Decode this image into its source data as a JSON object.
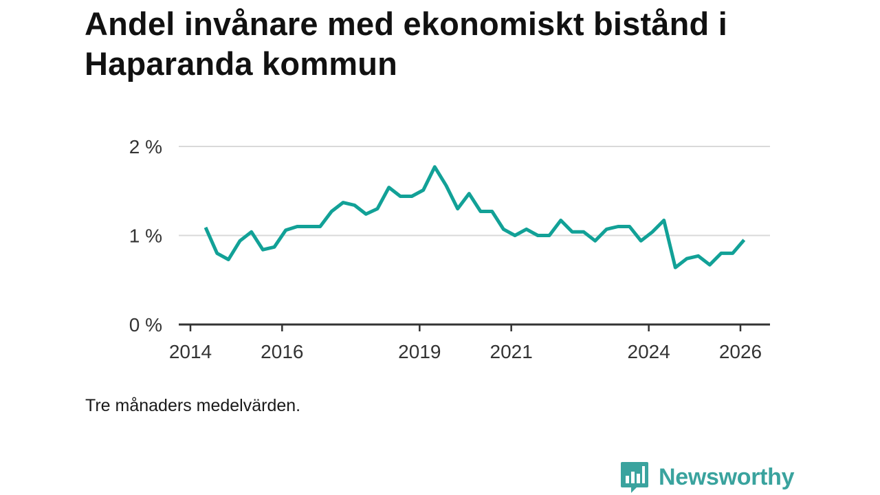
{
  "title": "Andel invånare med ekonomiskt bistånd i Haparanda kommun",
  "caption": "Tre månaders medelvärden.",
  "brand": {
    "name": "Newsworthy",
    "color": "#3aa39e"
  },
  "chart_data": {
    "type": "line",
    "title": "Andel invånare med ekonomiskt bistånd i Haparanda kommun",
    "xlabel": "",
    "ylabel": "",
    "ylim": [
      0,
      2
    ],
    "xlim": [
      2014.0,
      2026.7
    ],
    "y_ticks": [
      {
        "value": 0,
        "label": "0 %"
      },
      {
        "value": 1,
        "label": "1 %"
      },
      {
        "value": 2,
        "label": "2 %"
      }
    ],
    "x_ticks": [
      {
        "value": 2014,
        "label": "2014"
      },
      {
        "value": 2016,
        "label": "2016"
      },
      {
        "value": 2019,
        "label": "2019"
      },
      {
        "value": 2021,
        "label": "2021"
      },
      {
        "value": 2024,
        "label": "2024"
      },
      {
        "value": 2026,
        "label": "2026"
      }
    ],
    "grid": true,
    "series": [
      {
        "name": "Andel invånare med ekonomiskt bistånd",
        "color": "#12a197",
        "x": [
          2014.33,
          2014.58,
          2014.83,
          2015.08,
          2015.33,
          2015.58,
          2015.83,
          2016.08,
          2016.33,
          2016.58,
          2016.83,
          2017.08,
          2017.33,
          2017.58,
          2017.83,
          2018.08,
          2018.33,
          2018.58,
          2018.83,
          2019.08,
          2019.33,
          2019.58,
          2019.83,
          2020.08,
          2020.33,
          2020.58,
          2020.83,
          2021.08,
          2021.33,
          2021.58,
          2021.83,
          2022.08,
          2022.33,
          2022.58,
          2022.83,
          2023.08,
          2023.33,
          2023.58,
          2023.83,
          2024.08,
          2024.33,
          2024.58,
          2024.83,
          2025.08,
          2025.33,
          2025.58,
          2025.83,
          2026.08
        ],
        "values": [
          1.09,
          0.8,
          0.73,
          0.94,
          1.04,
          0.84,
          0.87,
          1.06,
          1.1,
          1.1,
          1.1,
          1.27,
          1.37,
          1.34,
          1.24,
          1.3,
          1.54,
          1.44,
          1.44,
          1.51,
          1.77,
          1.56,
          1.3,
          1.47,
          1.27,
          1.27,
          1.07,
          1.0,
          1.07,
          1.0,
          1.0,
          1.17,
          1.04,
          1.04,
          0.94,
          1.07,
          1.1,
          1.1,
          0.94,
          1.04,
          1.17,
          0.64,
          0.74,
          0.77,
          0.67,
          0.8,
          0.8,
          0.95
        ]
      }
    ]
  }
}
